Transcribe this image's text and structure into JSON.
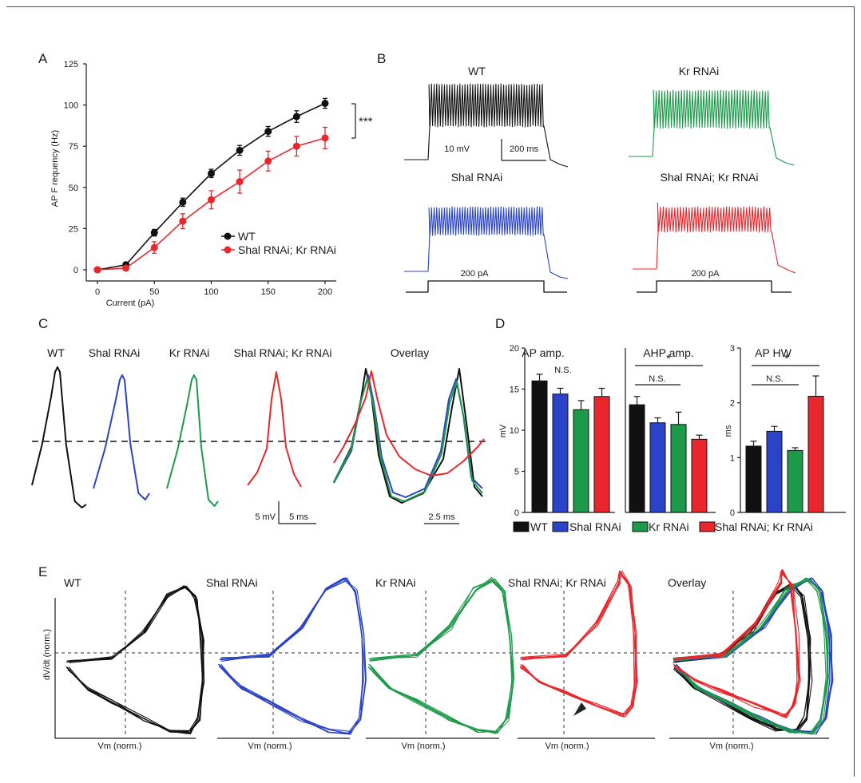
{
  "colors": {
    "wt": "#111111",
    "shal": "#2a43c8",
    "kr": "#1c9a4a",
    "double": "#e8262b"
  },
  "panels": {
    "a": "A",
    "b": "B",
    "c": "C",
    "d": "D",
    "e": "E"
  },
  "chart_data": [
    {
      "panel": "A",
      "type": "line",
      "xlabel": "Current (pA)",
      "ylabel": "AP F requency (Hz)",
      "xlim": [
        0,
        200
      ],
      "ylim": [
        0,
        125
      ],
      "xticks": [
        "0",
        "50",
        "100",
        "150",
        "200"
      ],
      "yticks": [
        "0",
        "25",
        "50",
        "75",
        "100",
        "125"
      ],
      "x": [
        0,
        25,
        50,
        75,
        100,
        125,
        150,
        175,
        200
      ],
      "series": [
        {
          "name": "WT",
          "color": "#111111",
          "values": [
            0,
            3,
            22.5,
            41,
            58.5,
            72.5,
            84,
            93,
            101
          ],
          "errors": [
            0,
            1.5,
            2,
            2.5,
            2.5,
            3,
            3,
            3.5,
            3
          ]
        },
        {
          "name": "Shal RNAi; Kr RNAi",
          "color": "#e8262b",
          "values": [
            0,
            1,
            13.5,
            29.5,
            42.5,
            53.5,
            66,
            75,
            80
          ],
          "errors": [
            0,
            1,
            3.5,
            4.5,
            5.5,
            7,
            6,
            6,
            6.5
          ]
        }
      ],
      "significance": "***",
      "legend_position": "bottom-right"
    },
    {
      "panel": "B",
      "type": "line",
      "traces": [
        "WT",
        "Kr RNAi",
        "Shal RNAi",
        "Shal RNAi; Kr RNAi"
      ],
      "scalebar_v": "10 mV",
      "scalebar_h": "200 ms",
      "stimulus": "200 pA"
    },
    {
      "panel": "C",
      "type": "line",
      "traces": [
        "WT",
        "Shal RNAi",
        "Kr RNAi",
        "Shal RNAi; Kr RNAi",
        "Overlay"
      ],
      "scalebar_v": "5 mV",
      "scalebar_h1": "5 ms",
      "scalebar_h2": "2.5 ms"
    },
    {
      "panel": "D",
      "type": "bar",
      "categories": [
        "WT",
        "Shal RNAi",
        "Kr RNAi",
        "Shal RNAi; Kr RNAi"
      ],
      "legend_position": "bottom",
      "subplots": [
        {
          "title": "AP amp.",
          "ylabel": "mV",
          "ylim": [
            0,
            20
          ],
          "yticks": [
            "0",
            "5",
            "10",
            "15",
            "20"
          ],
          "values": [
            16,
            14.4,
            12.5,
            14.1
          ],
          "errors": [
            0.8,
            0.7,
            1.1,
            1.0
          ],
          "annotations": [
            {
              "text": "N.S."
            }
          ]
        },
        {
          "title": "AHP amp.",
          "ylabel": "",
          "ylim": [
            0,
            20
          ],
          "yticks": [],
          "values": [
            13.1,
            10.9,
            10.7,
            8.9
          ],
          "errors": [
            1.0,
            0.6,
            1.5,
            0.5
          ],
          "annotations": [
            {
              "text": "*"
            },
            {
              "text": "N.S."
            }
          ]
        },
        {
          "title": "AP HW",
          "ylabel": "ms",
          "ylim": [
            0,
            3
          ],
          "yticks": [
            "0",
            "1",
            "2",
            "3"
          ],
          "values": [
            1.21,
            1.48,
            1.13,
            2.12
          ],
          "errors": [
            0.09,
            0.09,
            0.05,
            0.37
          ],
          "annotations": [
            {
              "text": "*"
            },
            {
              "text": "N.S."
            }
          ]
        }
      ]
    },
    {
      "panel": "E",
      "type": "line",
      "traces": [
        "WT",
        "Shal RNAi",
        "Kr RNAi",
        "Shal RNAi; Kr RNAi",
        "Overlay"
      ],
      "xlabel": "Vm (norm.)",
      "ylabel": "dV/dt (norm.)"
    }
  ]
}
